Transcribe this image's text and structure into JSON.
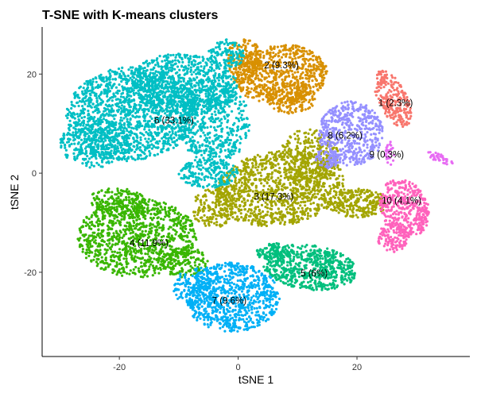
{
  "chart_data": {
    "type": "scatter",
    "title": "T-SNE with K-means clusters",
    "xlabel": "tSNE 1",
    "ylabel": "tSNE 2",
    "xlim": [
      -33,
      39
    ],
    "ylim": [
      -37,
      29.5
    ],
    "xticks": [
      -20,
      0,
      20
    ],
    "yticks": [
      20,
      0,
      -20
    ],
    "grid": false,
    "legend": "none",
    "clusters": [
      {
        "id": 1,
        "label": "1 (2.3%)",
        "color": "#F8766D",
        "label_x": 26.5,
        "label_y": 14.2
      },
      {
        "id": 2,
        "label": "2 (9.3%)",
        "color": "#D89000",
        "label_x": 7.3,
        "label_y": 21.8
      },
      {
        "id": 3,
        "label": "3 (17.3%)",
        "color": "#A3A500",
        "label_x": 6.0,
        "label_y": -4.7
      },
      {
        "id": 4,
        "label": "4 (11.9%)",
        "color": "#39B600",
        "label_x": -15.0,
        "label_y": -14.1
      },
      {
        "id": 5,
        "label": "5 (6%)",
        "color": "#00BF7D",
        "label_x": 12.8,
        "label_y": -20.2
      },
      {
        "id": 6,
        "label": "6 (33.1%)",
        "color": "#00BFC4",
        "label_x": -10.8,
        "label_y": 10.7
      },
      {
        "id": 7,
        "label": "7 (9.6%)",
        "color": "#00B0F6",
        "label_x": -1.5,
        "label_y": -25.7
      },
      {
        "id": 8,
        "label": "8 (6.2%)",
        "color": "#9590FF",
        "label_x": 18.0,
        "label_y": 7.6
      },
      {
        "id": 9,
        "label": "9 (0.3%)",
        "color": "#E76BF3",
        "label_x": 25.0,
        "label_y": 3.8
      },
      {
        "id": 10,
        "label": "10 (4.1%)",
        "color": "#FF62BC",
        "label_x": 27.5,
        "label_y": -5.5
      }
    ]
  }
}
